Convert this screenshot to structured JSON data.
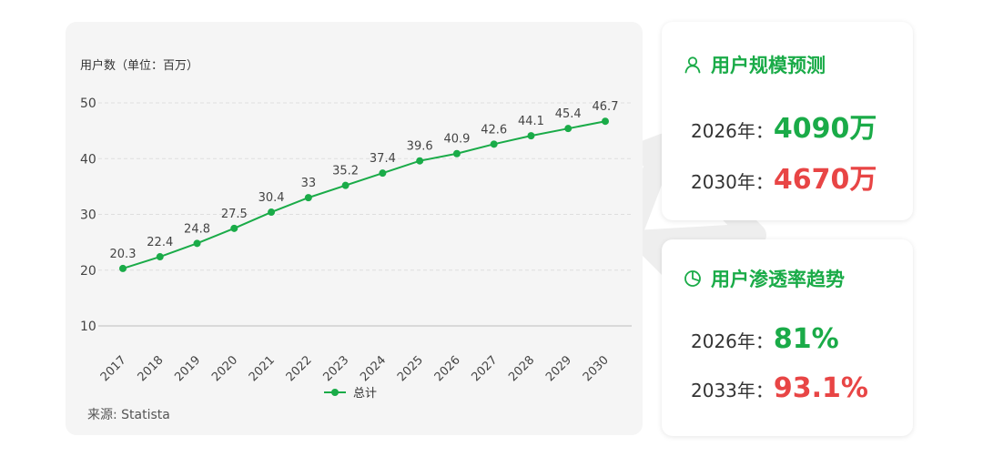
{
  "chart_data": {
    "type": "line",
    "x": [
      "2017",
      "2018",
      "2019",
      "2020",
      "2021",
      "2022",
      "2023",
      "2024",
      "2025",
      "2026",
      "2027",
      "2028",
      "2029",
      "2030"
    ],
    "series": [
      {
        "name": "总计",
        "values": [
          20.3,
          22.4,
          24.8,
          27.5,
          30.4,
          33,
          35.2,
          37.4,
          39.6,
          40.9,
          42.6,
          44.1,
          45.4,
          46.7
        ],
        "color": "#1aab48"
      }
    ],
    "y_ticks": [
      10,
      20,
      30,
      40,
      50
    ],
    "ylim": [
      10,
      50
    ],
    "ylabel": "用户数（单位：百万）",
    "xlabel": "",
    "grid": true,
    "legend_position": "bottom",
    "data_labels": true
  },
  "source_text": "来源: Statista",
  "user_forecast": {
    "icon": "user-icon",
    "title": "用户规模预测",
    "rows": [
      {
        "year_label": "2026年：",
        "value": "4090万",
        "color": "#1aab48"
      },
      {
        "year_label": "2030年：",
        "value": "4670万",
        "color": "#e84545"
      }
    ]
  },
  "penetration_trend": {
    "icon": "pie-chart-icon",
    "title": "用户渗透率趋势",
    "rows": [
      {
        "year_label": "2026年：",
        "value": "81%",
        "color": "#1aab48"
      },
      {
        "year_label": "2033年：",
        "value": "93.1%",
        "color": "#e84545"
      }
    ]
  }
}
